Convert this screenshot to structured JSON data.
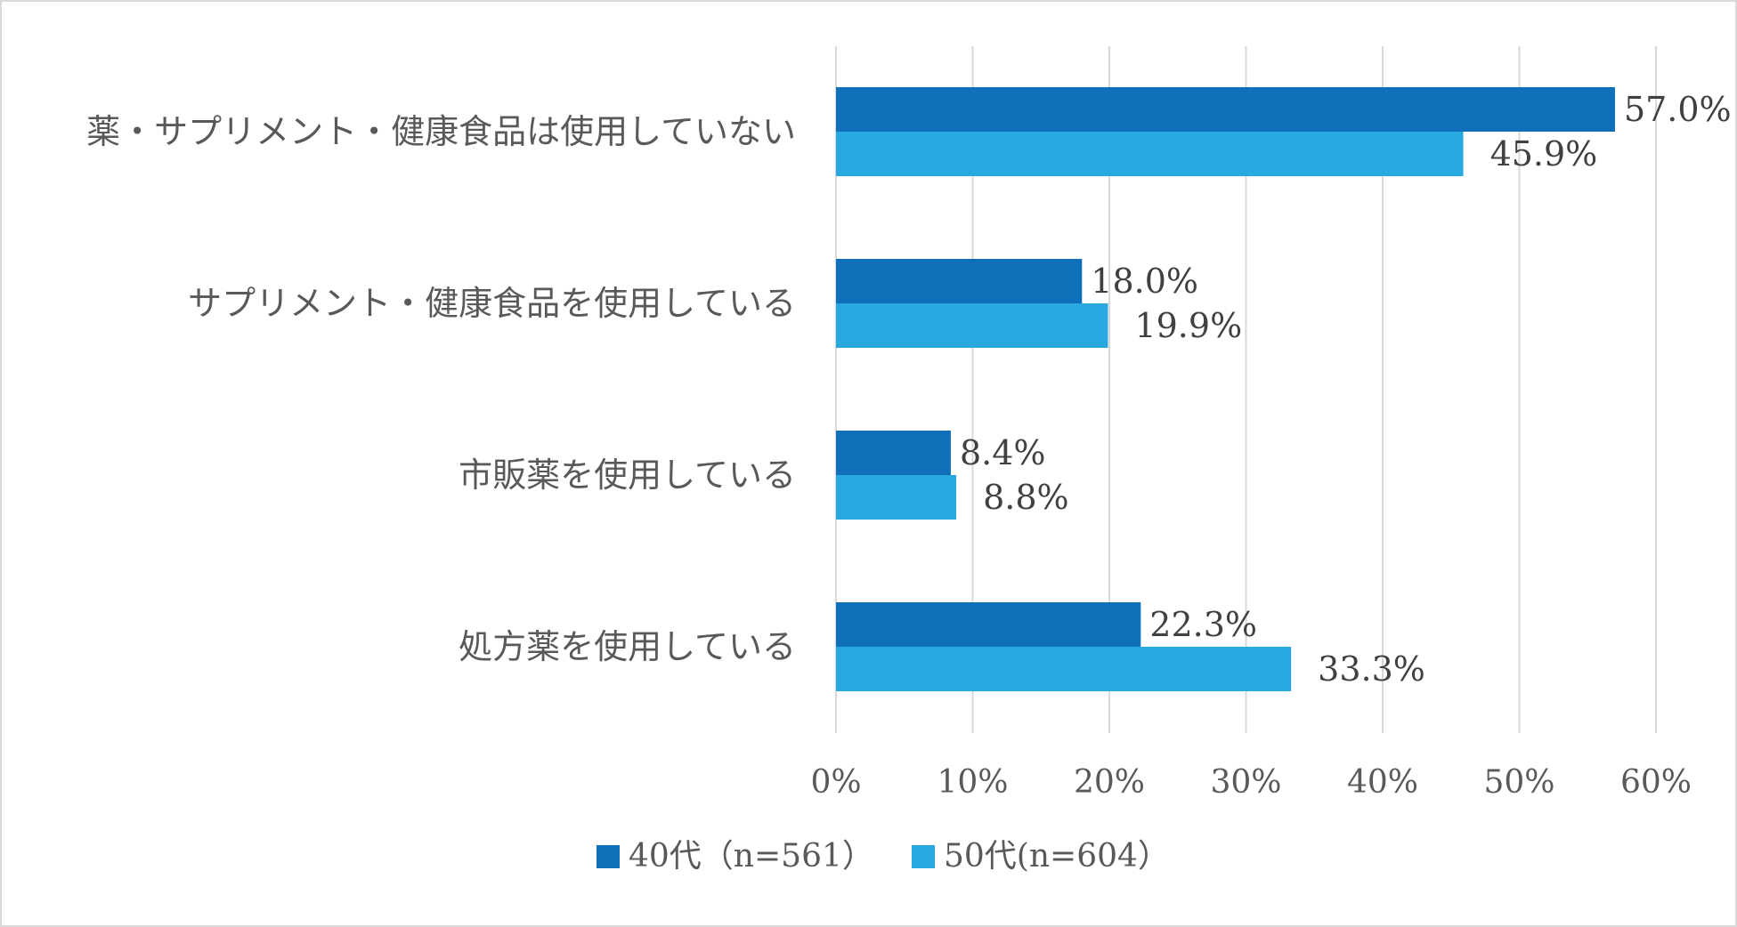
{
  "chart_data": {
    "type": "bar",
    "orientation": "horizontal",
    "categories": [
      "薬・サプリメント・健康食品は使用していない",
      "サプリメント・健康食品を使用している",
      "市販薬を使用している",
      "処方薬を使用している"
    ],
    "series": [
      {
        "name": "40代（n=561）",
        "color": "#0f6fb8",
        "values": [
          57.0,
          18.0,
          8.4,
          22.3
        ],
        "labels": [
          "57.0%",
          "18.0%",
          "8.4%",
          "22.3%"
        ]
      },
      {
        "name": "50代(n=604）",
        "color": "#29a8e0",
        "values": [
          45.9,
          19.9,
          8.8,
          33.3
        ],
        "labels": [
          "45.9%",
          "19.9%",
          "8.8%",
          "33.3%"
        ]
      }
    ],
    "xlim": [
      0,
      60
    ],
    "xticks": [
      0,
      10,
      20,
      30,
      40,
      50,
      60
    ],
    "xtick_labels": [
      "0%",
      "10%",
      "20%",
      "30%",
      "40%",
      "50%",
      "60%"
    ],
    "grid": true,
    "gridline_color": "#d9d9d9",
    "legend_position": "bottom",
    "title": "",
    "xlabel": "",
    "ylabel": ""
  }
}
